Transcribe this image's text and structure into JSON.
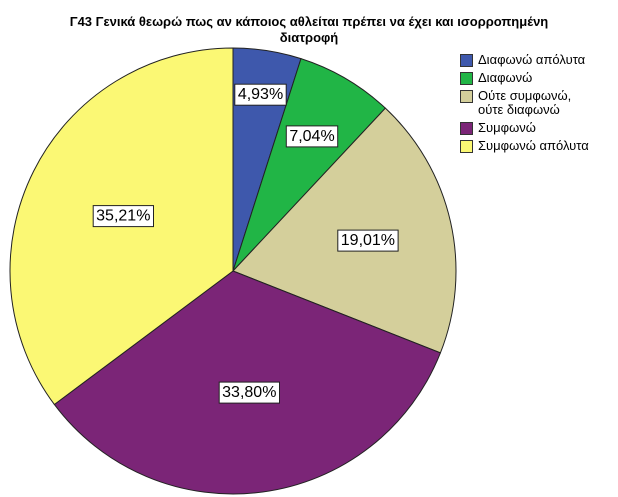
{
  "chart_data": {
    "type": "pie",
    "title_line1": "Γ43 Γενικά θεωρώ πως αν κάποιος αθλείται πρέπει να έχει και ισορροπημένη",
    "title_line2": "διατροφή",
    "categories": [
      "Διαφωνώ απόλυτα",
      "Διαφωνώ",
      "Ούτε συμφωνώ,\nούτε διαφωνώ",
      "Συμφωνώ",
      "Συμφωνώ απόλυτα"
    ],
    "values": [
      4.93,
      7.04,
      19.01,
      33.8,
      35.21
    ],
    "labels": [
      "4,93%",
      "7,04%",
      "19,01%",
      "33,80%",
      "35,21%"
    ],
    "colors": [
      "#3e58ac",
      "#21b546",
      "#d4cf9b",
      "#7b2577",
      "#fbf874"
    ],
    "legend_position": "right"
  }
}
